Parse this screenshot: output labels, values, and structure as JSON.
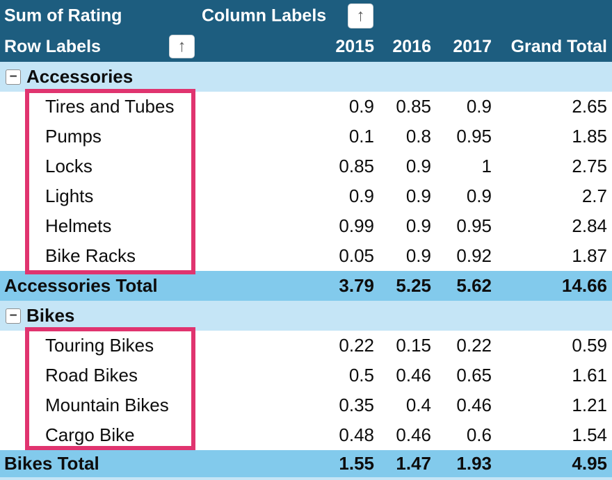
{
  "pivot": {
    "value_field_label": "Sum of Rating",
    "column_field_label": "Column Labels",
    "row_field_label": "Row Labels",
    "column_headers": [
      "2015",
      "2016",
      "2017",
      "Grand Total"
    ],
    "groups": [
      {
        "name": "Accessories",
        "items": [
          {
            "label": "Tires and Tubes",
            "values": [
              "0.9",
              "0.85",
              "0.9",
              "2.65"
            ]
          },
          {
            "label": "Pumps",
            "values": [
              "0.1",
              "0.8",
              "0.95",
              "1.85"
            ]
          },
          {
            "label": "Locks",
            "values": [
              "0.85",
              "0.9",
              "1",
              "2.75"
            ]
          },
          {
            "label": "Lights",
            "values": [
              "0.9",
              "0.9",
              "0.9",
              "2.7"
            ]
          },
          {
            "label": "Helmets",
            "values": [
              "0.99",
              "0.9",
              "0.95",
              "2.84"
            ]
          },
          {
            "label": "Bike Racks",
            "values": [
              "0.05",
              "0.9",
              "0.92",
              "1.87"
            ]
          }
        ],
        "total": {
          "label": "Accessories Total",
          "values": [
            "3.79",
            "5.25",
            "5.62",
            "14.66"
          ]
        }
      },
      {
        "name": "Bikes",
        "items": [
          {
            "label": "Touring Bikes",
            "values": [
              "0.22",
              "0.15",
              "0.22",
              "0.59"
            ]
          },
          {
            "label": "Road Bikes",
            "values": [
              "0.5",
              "0.46",
              "0.65",
              "1.61"
            ]
          },
          {
            "label": "Mountain Bikes",
            "values": [
              "0.35",
              "0.4",
              "0.46",
              "1.21"
            ]
          },
          {
            "label": "Cargo Bike",
            "values": [
              "0.48",
              "0.46",
              "0.6",
              "1.54"
            ]
          }
        ],
        "total": {
          "label": "Bikes Total",
          "values": [
            "1.55",
            "1.47",
            "1.93",
            "4.95"
          ]
        }
      }
    ]
  },
  "icons": {
    "sort_ascending_arrow": "↑",
    "collapse_minus": "−"
  },
  "colors": {
    "header_bg": "#1D5D7F",
    "header_text": "#FFFFFF",
    "group_row_bg": "#C5E5F6",
    "total_row_bg": "#82CAEC",
    "data_row_bg": "#FFFFFF",
    "body_text": "#0D0D0D",
    "annotation_border": "#E0346F"
  }
}
